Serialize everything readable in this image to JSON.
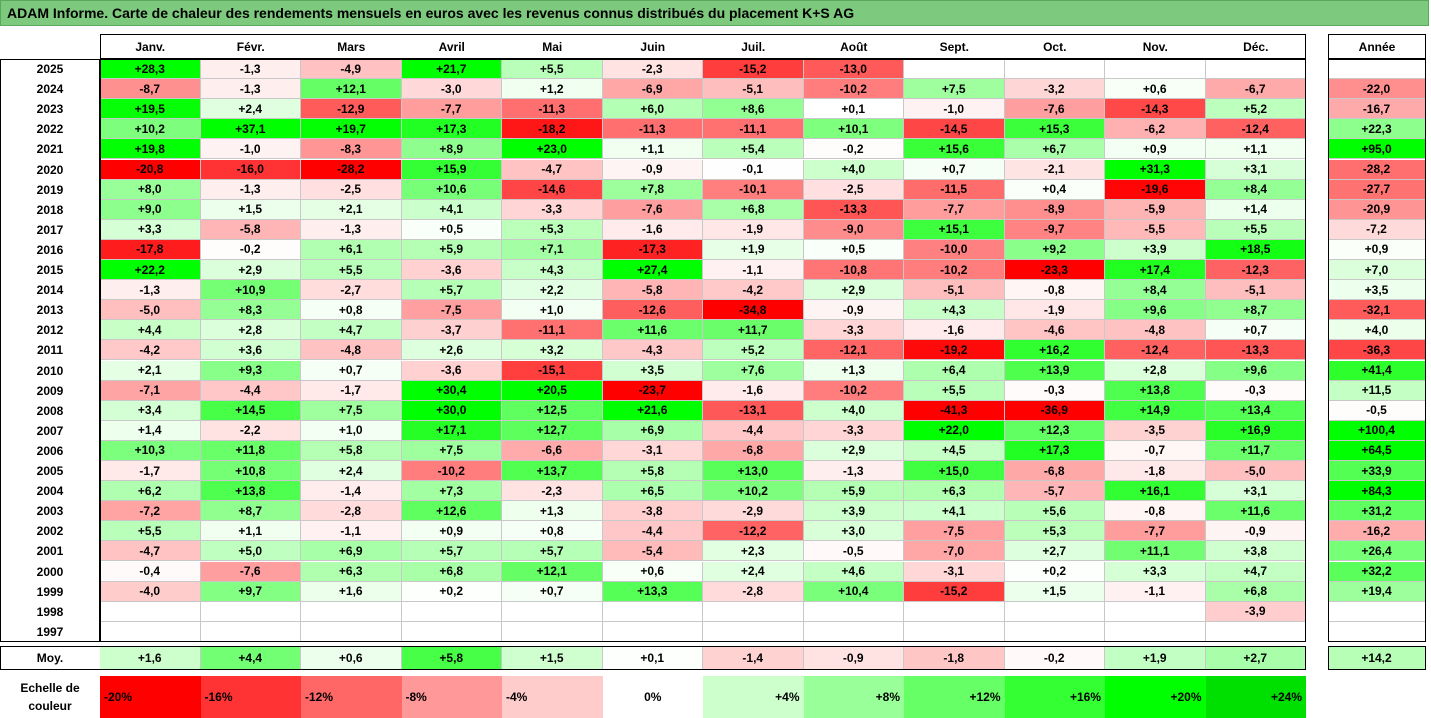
{
  "title": "ADAM Informe. Carte de chaleur des rendements mensuels en euros avec les revenus connus distribués du placement K+S AG",
  "chart_data": {
    "type": "heatmap",
    "months": [
      "Janv.",
      "Févr.",
      "Mars",
      "Avril",
      "Mai",
      "Juin",
      "Juil.",
      "Août",
      "Sept.",
      "Oct.",
      "Nov.",
      "Déc."
    ],
    "annual_label": "Année",
    "rows": [
      {
        "year": "2025",
        "months": [
          "+28,3",
          "-1,3",
          "-4,9",
          "+21,7",
          "+5,5",
          "-2,3",
          "-15,2",
          "-13,0",
          "",
          "",
          "",
          ""
        ],
        "annual": ""
      },
      {
        "year": "2024",
        "months": [
          "-8,7",
          "-1,3",
          "+12,1",
          "-3,0",
          "+1,2",
          "-6,9",
          "-5,1",
          "-10,2",
          "+7,5",
          "-3,2",
          "+0,6",
          "-6,7"
        ],
        "annual": "-22,0"
      },
      {
        "year": "2023",
        "months": [
          "+19,5",
          "+2,4",
          "-12,9",
          "-7,7",
          "-11,3",
          "+6,0",
          "+8,6",
          "+0,1",
          "-1,0",
          "-7,6",
          "-14,3",
          "+5,2"
        ],
        "annual": "-16,7"
      },
      {
        "year": "2022",
        "months": [
          "+10,2",
          "+37,1",
          "+19,7",
          "+17,3",
          "-18,2",
          "-11,3",
          "-11,1",
          "+10,1",
          "-14,5",
          "+15,3",
          "-6,2",
          "-12,4"
        ],
        "annual": "+22,3"
      },
      {
        "year": "2021",
        "months": [
          "+19,8",
          "-1,0",
          "-8,3",
          "+8,9",
          "+23,0",
          "+1,1",
          "+5,4",
          "-0,2",
          "+15,6",
          "+6,7",
          "+0,9",
          "+1,1"
        ],
        "annual": "+95,0"
      },
      {
        "year": "2020",
        "months": [
          "-20,8",
          "-16,0",
          "-28,2",
          "+15,9",
          "-4,7",
          "-0,9",
          "-0,1",
          "+4,0",
          "+0,7",
          "-2,1",
          "+31,3",
          "+3,1"
        ],
        "annual": "-28,2"
      },
      {
        "year": "2019",
        "months": [
          "+8,0",
          "-1,3",
          "-2,5",
          "+10,6",
          "-14,6",
          "+7,8",
          "-10,1",
          "-2,5",
          "-11,5",
          "+0,4",
          "-19,6",
          "+8,4"
        ],
        "annual": "-27,7"
      },
      {
        "year": "2018",
        "months": [
          "+9,0",
          "+1,5",
          "+2,1",
          "+4,1",
          "-3,3",
          "-7,6",
          "+6,8",
          "-13,3",
          "-7,7",
          "-8,9",
          "-5,9",
          "+1,4"
        ],
        "annual": "-20,9"
      },
      {
        "year": "2017",
        "months": [
          "+3,3",
          "-5,8",
          "-1,3",
          "+0,5",
          "+5,3",
          "-1,6",
          "-1,9",
          "-9,0",
          "+15,1",
          "-9,7",
          "-5,5",
          "+5,5"
        ],
        "annual": "-7,2"
      },
      {
        "year": "2016",
        "months": [
          "-17,8",
          "-0,2",
          "+6,1",
          "+5,9",
          "+7,1",
          "-17,3",
          "+1,9",
          "+0,5",
          "-10,0",
          "+9,2",
          "+3,9",
          "+18,5"
        ],
        "annual": "+0,9"
      },
      {
        "year": "2015",
        "months": [
          "+22,2",
          "+2,9",
          "+5,5",
          "-3,6",
          "+4,3",
          "+27,4",
          "-1,1",
          "-10,8",
          "-10,2",
          "-23,3",
          "+17,4",
          "-12,3"
        ],
        "annual": "+7,0"
      },
      {
        "year": "2014",
        "months": [
          "-1,3",
          "+10,9",
          "-2,7",
          "+5,7",
          "+2,2",
          "-5,8",
          "-4,2",
          "+2,9",
          "-5,1",
          "-0,8",
          "+8,4",
          "-5,1"
        ],
        "annual": "+3,5"
      },
      {
        "year": "2013",
        "months": [
          "-5,0",
          "+8,3",
          "+0,8",
          "-7,5",
          "+1,0",
          "-12,6",
          "-34,8",
          "-0,9",
          "+4,3",
          "-1,9",
          "+9,6",
          "+8,7"
        ],
        "annual": "-32,1"
      },
      {
        "year": "2012",
        "months": [
          "+4,4",
          "+2,8",
          "+4,7",
          "-3,7",
          "-11,1",
          "+11,6",
          "+11,7",
          "-3,3",
          "-1,6",
          "-4,6",
          "-4,8",
          "+0,7"
        ],
        "annual": "+4,0"
      },
      {
        "year": "2011",
        "months": [
          "-4,2",
          "+3,6",
          "-4,8",
          "+2,6",
          "+3,2",
          "-4,3",
          "+5,2",
          "-12,1",
          "-19,2",
          "+16,2",
          "-12,4",
          "-13,3"
        ],
        "annual": "-36,3"
      },
      {
        "year": "2010",
        "months": [
          "+2,1",
          "+9,3",
          "+0,7",
          "-3,6",
          "-15,1",
          "+3,5",
          "+7,6",
          "+1,3",
          "+6,4",
          "+13,9",
          "+2,8",
          "+9,6"
        ],
        "annual": "+41,4"
      },
      {
        "year": "2009",
        "months": [
          "-7,1",
          "-4,4",
          "-1,7",
          "+30,4",
          "+20,5",
          "-23,7",
          "-1,6",
          "-10,2",
          "+5,5",
          "-0,3",
          "+13,8",
          "-0,3"
        ],
        "annual": "+11,5"
      },
      {
        "year": "2008",
        "months": [
          "+3,4",
          "+14,5",
          "+7,5",
          "+30,0",
          "+12,5",
          "+21,6",
          "-13,1",
          "+4,0",
          "-41,3",
          "-36,9",
          "+14,9",
          "+13,4"
        ],
        "annual": "-0,5"
      },
      {
        "year": "2007",
        "months": [
          "+1,4",
          "-2,2",
          "+1,0",
          "+17,1",
          "+12,7",
          "+6,9",
          "-4,4",
          "-3,3",
          "+22,0",
          "+12,3",
          "-3,5",
          "+16,9"
        ],
        "annual": "+100,4"
      },
      {
        "year": "2006",
        "months": [
          "+10,3",
          "+11,8",
          "+5,8",
          "+7,5",
          "-6,6",
          "-3,1",
          "-6,8",
          "+2,9",
          "+4,5",
          "+17,3",
          "-0,7",
          "+11,7"
        ],
        "annual": "+64,5"
      },
      {
        "year": "2005",
        "months": [
          "-1,7",
          "+10,8",
          "+2,4",
          "-10,2",
          "+13,7",
          "+5,8",
          "+13,0",
          "-1,3",
          "+15,0",
          "-6,8",
          "-1,8",
          "-5,0"
        ],
        "annual": "+33,9"
      },
      {
        "year": "2004",
        "months": [
          "+6,2",
          "+13,8",
          "-1,4",
          "+7,3",
          "-2,3",
          "+6,5",
          "+10,2",
          "+5,9",
          "+6,3",
          "-5,7",
          "+16,1",
          "+3,1"
        ],
        "annual": "+84,3"
      },
      {
        "year": "2003",
        "months": [
          "-7,2",
          "+8,7",
          "-2,8",
          "+12,6",
          "+1,3",
          "-3,8",
          "-2,9",
          "+3,9",
          "+4,1",
          "+5,6",
          "-0,8",
          "+11,6"
        ],
        "annual": "+31,2"
      },
      {
        "year": "2002",
        "months": [
          "+5,5",
          "+1,1",
          "-1,1",
          "+0,9",
          "+0,8",
          "-4,4",
          "-12,2",
          "+3,0",
          "-7,5",
          "+5,3",
          "-7,7",
          "-0,9"
        ],
        "annual": "-16,2"
      },
      {
        "year": "2001",
        "months": [
          "-4,7",
          "+5,0",
          "+6,9",
          "+5,7",
          "+5,7",
          "-5,4",
          "+2,3",
          "-0,5",
          "-7,0",
          "+2,7",
          "+11,1",
          "+3,8"
        ],
        "annual": "+26,4"
      },
      {
        "year": "2000",
        "months": [
          "-0,4",
          "-7,6",
          "+6,3",
          "+6,8",
          "+12,1",
          "+0,6",
          "+2,4",
          "+4,6",
          "-3,1",
          "+0,2",
          "+3,3",
          "+4,7"
        ],
        "annual": "+32,2"
      },
      {
        "year": "1999",
        "months": [
          "-4,0",
          "+9,7",
          "+1,6",
          "+0,2",
          "+0,7",
          "+13,3",
          "-2,8",
          "+10,4",
          "-15,2",
          "+1,5",
          "-1,1",
          "+6,8"
        ],
        "annual": "+19,4"
      },
      {
        "year": "1998",
        "months": [
          "",
          "",
          "",
          "",
          "",
          "",
          "",
          "",
          "",
          "",
          "",
          "-3,9"
        ],
        "annual": ""
      },
      {
        "year": "1997",
        "months": [
          "",
          "",
          "",
          "",
          "",
          "",
          "",
          "",
          "",
          "",
          "",
          ""
        ],
        "annual": ""
      }
    ],
    "average": {
      "label": "Moy.",
      "months": [
        "+1,6",
        "+4,4",
        "+0,6",
        "+5,8",
        "+1,5",
        "+0,1",
        "-1,4",
        "-0,9",
        "-1,8",
        "-0,2",
        "+1,9",
        "+2,7"
      ],
      "annual": "+14,2"
    },
    "color_scale": {
      "label_line1": "Echelle de",
      "label_line2": "couleur",
      "steps": [
        {
          "label": "-20%",
          "value": -20,
          "color": "#ff0000"
        },
        {
          "label": "-16%",
          "value": -16,
          "color": "#ff3333"
        },
        {
          "label": "-12%",
          "value": -12,
          "color": "#ff6666"
        },
        {
          "label": "-8%",
          "value": -8,
          "color": "#ff9999"
        },
        {
          "label": "-4%",
          "value": -4,
          "color": "#ffcccc"
        },
        {
          "label": "0%",
          "value": 0,
          "color": "#ffffff"
        },
        {
          "label": "+4%",
          "value": 4,
          "color": "#ccffcc"
        },
        {
          "label": "+8%",
          "value": 8,
          "color": "#99ff99"
        },
        {
          "label": "+12%",
          "value": 12,
          "color": "#66ff66"
        },
        {
          "label": "+16%",
          "value": 16,
          "color": "#33ff33"
        },
        {
          "label": "+20%",
          "value": 20,
          "color": "#00ff00"
        },
        {
          "label": "+24%",
          "value": 24,
          "color": "#00e000"
        }
      ]
    }
  }
}
